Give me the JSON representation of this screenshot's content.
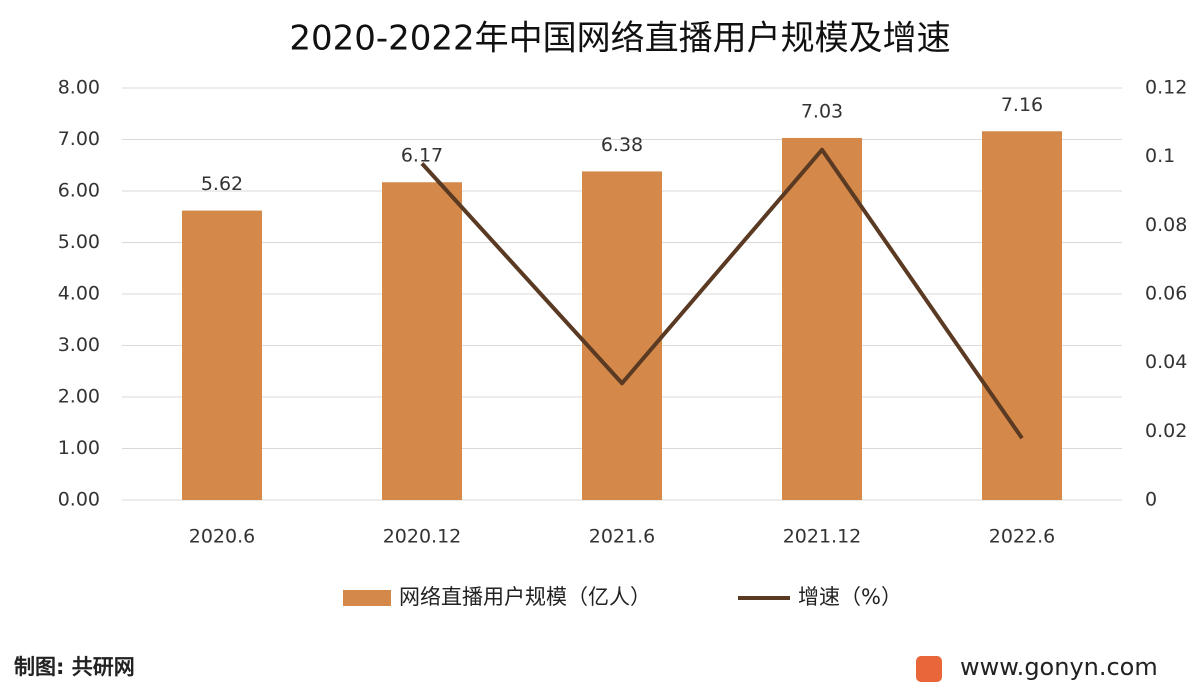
{
  "chart_data": {
    "type": "bar_line",
    "title": "2020-2022年中国网络直播用户规模及增速",
    "categories": [
      "2020.6",
      "2020.12",
      "2021.6",
      "2021.12",
      "2022.6"
    ],
    "series": [
      {
        "name": "网络直播用户规模（亿人）",
        "type": "bar",
        "color": "#d4894a",
        "values": [
          5.62,
          6.17,
          6.38,
          7.03,
          7.16
        ]
      },
      {
        "name": "增速（%）",
        "type": "line",
        "axis": "y2",
        "color": "#5a3a22",
        "values": [
          null,
          0.098,
          0.034,
          0.102,
          0.018
        ]
      }
    ],
    "ylim": [
      0,
      8
    ],
    "yticks": [
      {
        "value": 0,
        "label": "0.00"
      },
      {
        "value": 1,
        "label": "1.00"
      },
      {
        "value": 2,
        "label": "2.00"
      },
      {
        "value": 3,
        "label": "3.00"
      },
      {
        "value": 4,
        "label": "4.00"
      },
      {
        "value": 5,
        "label": "5.00"
      },
      {
        "value": 6,
        "label": "6.00"
      },
      {
        "value": 7,
        "label": "7.00"
      },
      {
        "value": 8,
        "label": "8.00"
      }
    ],
    "y2lim": [
      0,
      0.12
    ],
    "y2ticks": [
      0,
      0.02,
      0.04,
      0.06,
      0.08,
      0.1,
      0.12
    ],
    "grid": true,
    "legend": "bottom",
    "source": "制图: 共研网",
    "website": "www.gonyn.com"
  }
}
